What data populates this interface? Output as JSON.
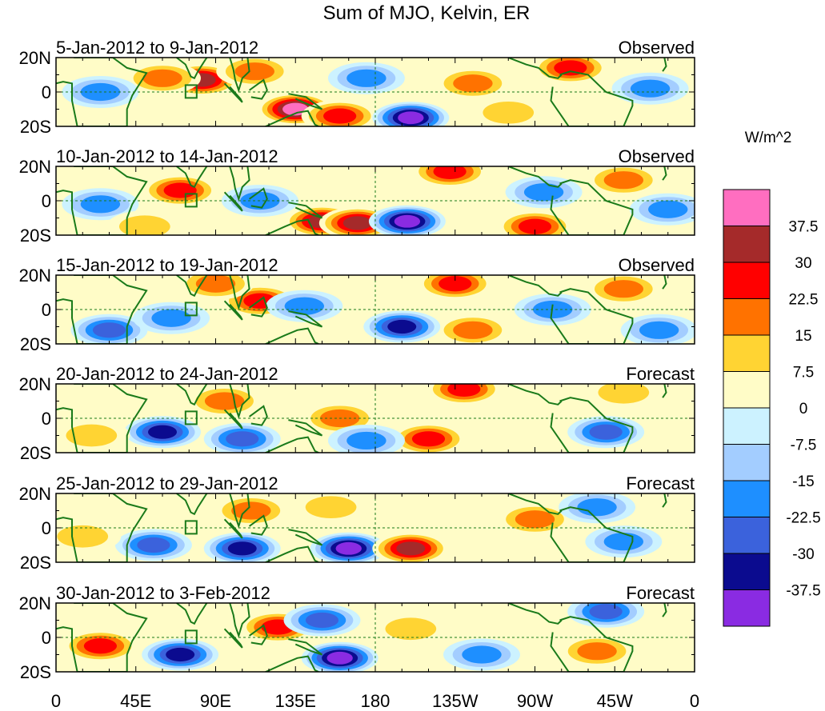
{
  "chart_data": {
    "type": "heatmap",
    "title": "Sum of MJO, Kelvin, ER",
    "units": "W/m^2",
    "x_ticks": [
      "0",
      "45E",
      "90E",
      "135E",
      "180",
      "135W",
      "90W",
      "45W",
      "0"
    ],
    "y_ticks": [
      "20N",
      "0",
      "20S"
    ],
    "xlim": [
      0,
      360
    ],
    "ylim": [
      -20,
      20
    ],
    "colorbar": {
      "labels": [
        "37.5",
        "30",
        "22.5",
        "15",
        "7.5",
        "0",
        "-7.5",
        "-15",
        "-22.5",
        "-30",
        "-37.5"
      ],
      "colors": [
        "#ff6ec0",
        "#a52a2a",
        "#ff0000",
        "#ff7200",
        "#ffd433",
        "#fffcc7",
        "#ccf2ff",
        "#a3cdff",
        "#1e8fff",
        "#3b62dc",
        "#0b0b8f",
        "#8a2be2"
      ]
    },
    "panels": [
      {
        "date_range": "5-Jan-2012 to 9-Jan-2012",
        "status": "Observed",
        "features": [
          {
            "lon": 82,
            "lat": 7,
            "value": 30
          },
          {
            "lon": 60,
            "lat": 8,
            "value": 15
          },
          {
            "lon": 135,
            "lat": -10,
            "value": 37.5
          },
          {
            "lon": 160,
            "lat": -14,
            "value": 22.5
          },
          {
            "lon": 112,
            "lat": 12,
            "value": 15
          },
          {
            "lon": 200,
            "lat": -15,
            "value": -37.5
          },
          {
            "lon": 235,
            "lat": 5,
            "value": 15
          },
          {
            "lon": 290,
            "lat": 14,
            "value": 22.5
          },
          {
            "lon": 25,
            "lat": 0,
            "value": -15
          },
          {
            "lon": 175,
            "lat": 8,
            "value": -15
          },
          {
            "lon": 255,
            "lat": -12,
            "value": 7.5
          },
          {
            "lon": 335,
            "lat": 2,
            "value": -15
          }
        ]
      },
      {
        "date_range": "10-Jan-2012 to 14-Jan-2012",
        "status": "Observed",
        "features": [
          {
            "lon": 70,
            "lat": 6,
            "value": 22.5
          },
          {
            "lon": 150,
            "lat": -12,
            "value": 30
          },
          {
            "lon": 170,
            "lat": -13,
            "value": 30
          },
          {
            "lon": 198,
            "lat": -12,
            "value": -37.5
          },
          {
            "lon": 222,
            "lat": 17,
            "value": 22.5
          },
          {
            "lon": 320,
            "lat": 12,
            "value": 15
          },
          {
            "lon": 270,
            "lat": -15,
            "value": 22.5
          },
          {
            "lon": 115,
            "lat": 0,
            "value": -15
          },
          {
            "lon": 25,
            "lat": -2,
            "value": -15
          },
          {
            "lon": 50,
            "lat": -15,
            "value": 7.5
          },
          {
            "lon": 275,
            "lat": 5,
            "value": -15
          },
          {
            "lon": 345,
            "lat": -5,
            "value": -15
          }
        ]
      },
      {
        "date_range": "15-Jan-2012 to 19-Jan-2012",
        "status": "Observed",
        "features": [
          {
            "lon": 115,
            "lat": 5,
            "value": 22.5
          },
          {
            "lon": 90,
            "lat": 15,
            "value": 15
          },
          {
            "lon": 225,
            "lat": 15,
            "value": 22.5
          },
          {
            "lon": 320,
            "lat": 12,
            "value": 15
          },
          {
            "lon": 235,
            "lat": -12,
            "value": 15
          },
          {
            "lon": 195,
            "lat": -10,
            "value": -30
          },
          {
            "lon": 30,
            "lat": -12,
            "value": -22.5
          },
          {
            "lon": 65,
            "lat": -5,
            "value": -15
          },
          {
            "lon": 140,
            "lat": 2,
            "value": -15
          },
          {
            "lon": 280,
            "lat": 0,
            "value": -15
          },
          {
            "lon": 340,
            "lat": -12,
            "value": -15
          }
        ]
      },
      {
        "date_range": "20-Jan-2012 to 24-Jan-2012",
        "status": "Forecast",
        "features": [
          {
            "lon": 60,
            "lat": -8,
            "value": -30
          },
          {
            "lon": 105,
            "lat": -12,
            "value": -22.5
          },
          {
            "lon": 95,
            "lat": 10,
            "value": 15
          },
          {
            "lon": 230,
            "lat": 17,
            "value": 22.5
          },
          {
            "lon": 160,
            "lat": 0,
            "value": 15
          },
          {
            "lon": 210,
            "lat": -12,
            "value": 22.5
          },
          {
            "lon": 310,
            "lat": -8,
            "value": -22.5
          },
          {
            "lon": 20,
            "lat": -10,
            "value": 7.5
          },
          {
            "lon": 175,
            "lat": -13,
            "value": -15
          },
          {
            "lon": 320,
            "lat": 15,
            "value": 7.5
          }
        ]
      },
      {
        "date_range": "25-Jan-2012 to 29-Jan-2012",
        "status": "Forecast",
        "features": [
          {
            "lon": 55,
            "lat": -10,
            "value": -22.5
          },
          {
            "lon": 105,
            "lat": -12,
            "value": -30
          },
          {
            "lon": 165,
            "lat": -12,
            "value": -37.5
          },
          {
            "lon": 200,
            "lat": -12,
            "value": 30
          },
          {
            "lon": 110,
            "lat": 10,
            "value": 15
          },
          {
            "lon": 155,
            "lat": 12,
            "value": 7.5
          },
          {
            "lon": 270,
            "lat": 5,
            "value": 15
          },
          {
            "lon": 305,
            "lat": 12,
            "value": -15
          },
          {
            "lon": 15,
            "lat": -5,
            "value": 7.5
          },
          {
            "lon": 320,
            "lat": -8,
            "value": -15
          }
        ]
      },
      {
        "date_range": "30-Jan-2012 to 3-Feb-2012",
        "status": "Forecast",
        "features": [
          {
            "lon": 25,
            "lat": -5,
            "value": 22.5
          },
          {
            "lon": 125,
            "lat": 6,
            "value": 22.5
          },
          {
            "lon": 70,
            "lat": -10,
            "value": -30
          },
          {
            "lon": 160,
            "lat": -12,
            "value": -37.5
          },
          {
            "lon": 150,
            "lat": 10,
            "value": -22.5
          },
          {
            "lon": 310,
            "lat": 15,
            "value": -22.5
          },
          {
            "lon": 305,
            "lat": -8,
            "value": 15
          },
          {
            "lon": 200,
            "lat": 5,
            "value": 7.5
          },
          {
            "lon": 240,
            "lat": -10,
            "value": -15
          }
        ]
      }
    ]
  }
}
